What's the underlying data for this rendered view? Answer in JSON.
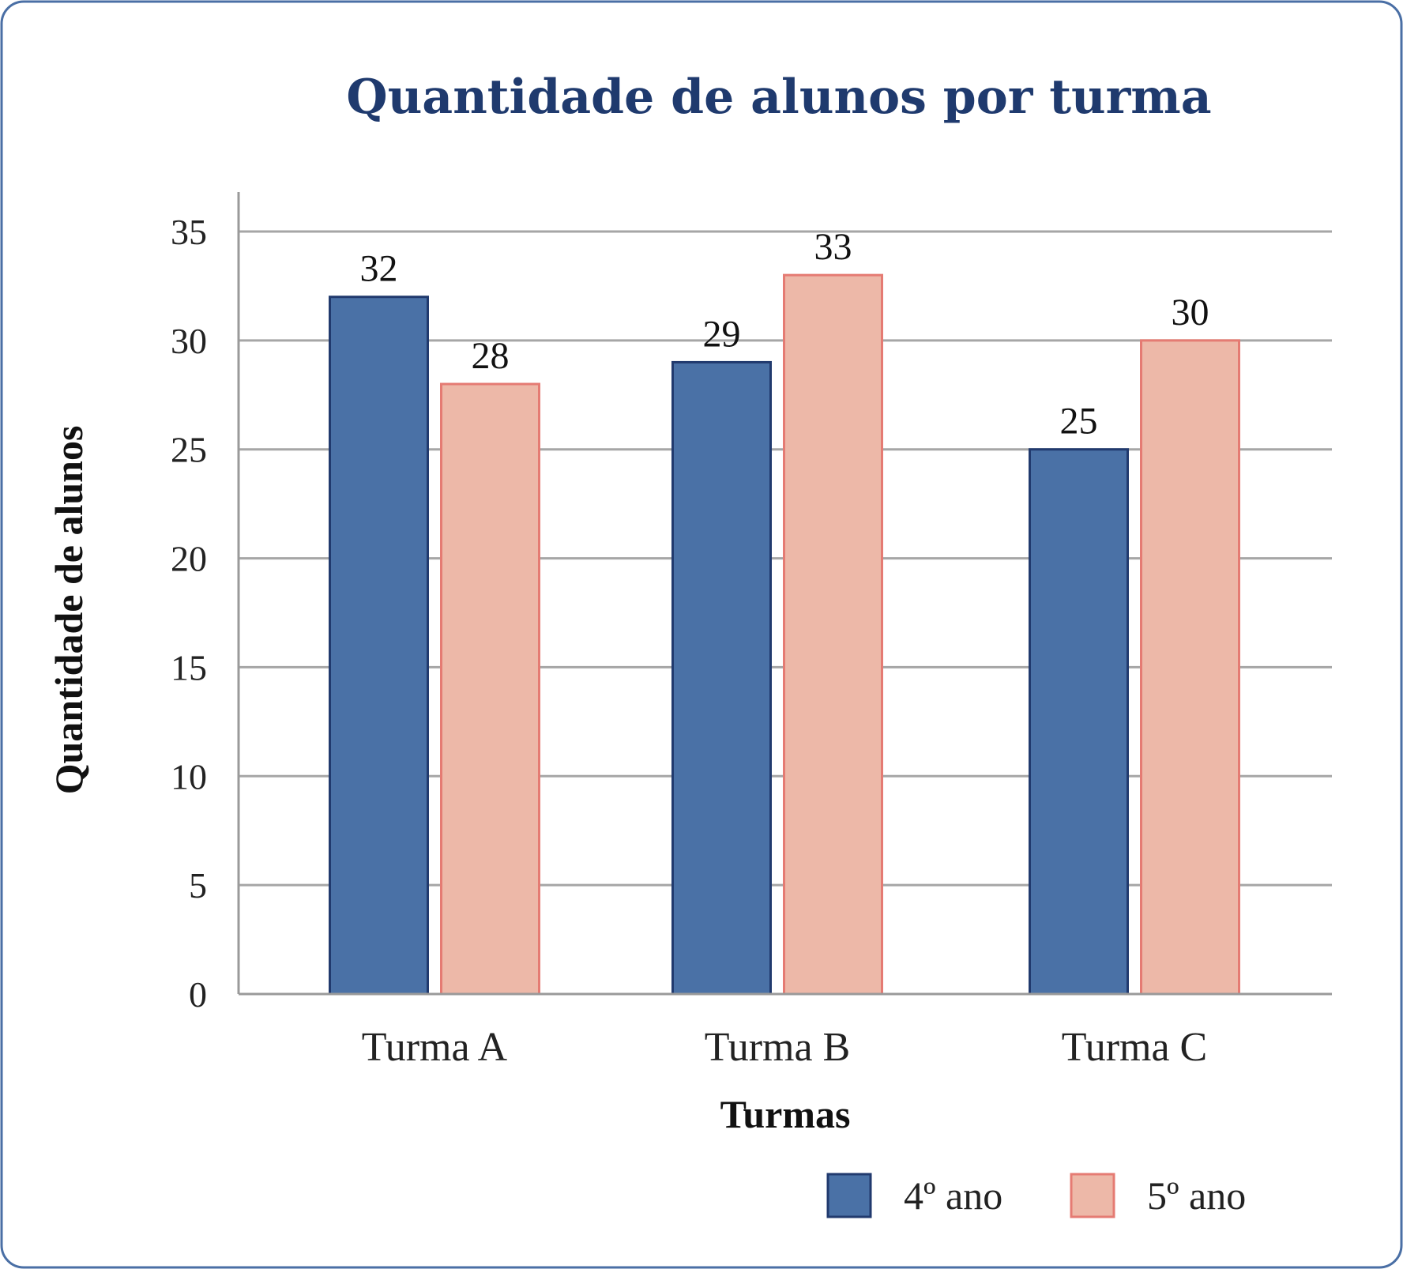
{
  "chart_data": {
    "type": "bar",
    "title": "Quantidade de alunos por turma",
    "xlabel": "Turmas",
    "ylabel": "Quantidade de alunos",
    "categories": [
      "Turma A",
      "Turma B",
      "Turma C"
    ],
    "series": [
      {
        "name": "4º ano",
        "values": [
          32,
          29,
          25
        ],
        "color": "#4a71a6",
        "stroke": "#213a6e"
      },
      {
        "name": "5º ano",
        "values": [
          28,
          33,
          30
        ],
        "color": "#edb8a8",
        "stroke": "#e57b73"
      }
    ],
    "ylim": [
      0,
      35
    ],
    "yticks": [
      0,
      5,
      10,
      15,
      20,
      25,
      30,
      35
    ],
    "grid": true,
    "legend_position": "bottom-right",
    "title_color": "#1f3a6e",
    "frame_color": "#4a6fa5",
    "grid_color": "#a6a6a6"
  }
}
